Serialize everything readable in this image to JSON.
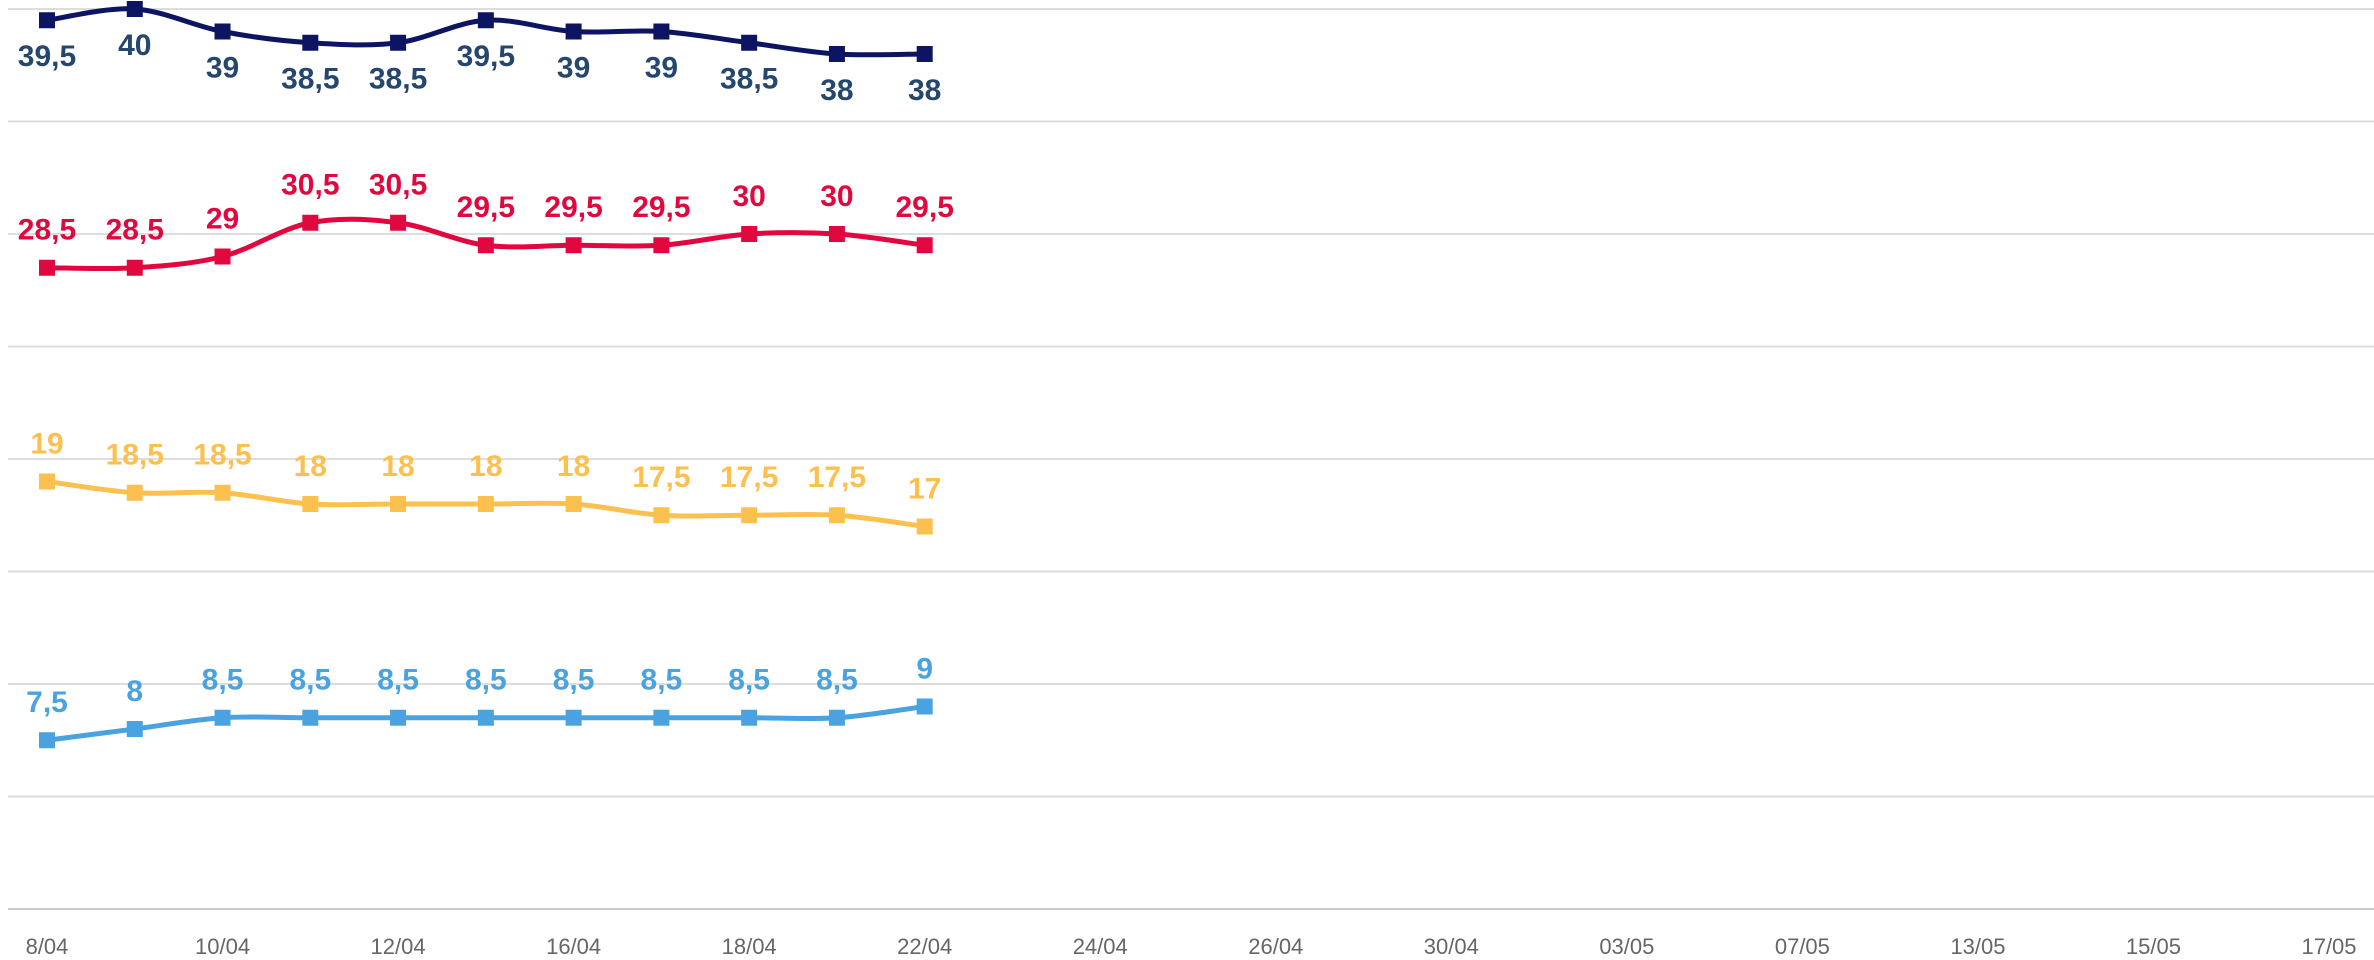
{
  "chart_data": {
    "type": "line",
    "categories": [
      "8/04",
      null,
      "10/04",
      null,
      "12/04",
      null,
      "16/04",
      null,
      "18/04",
      null,
      "22/04",
      null,
      "24/04",
      null,
      "26/04",
      null,
      "30/04",
      null,
      "03/05",
      null,
      "07/05",
      null,
      "13/05",
      null,
      "15/05",
      null,
      "17/05"
    ],
    "series": [
      {
        "color": "#0d1461",
        "label_color": "#26476d",
        "labels": "below",
        "values": [
          39.5,
          40,
          39,
          38.5,
          38.5,
          39.5,
          39,
          39,
          38.5,
          38,
          38,
          null,
          null,
          null,
          null,
          null,
          null,
          null,
          null,
          null,
          null,
          null,
          null,
          null,
          null,
          null,
          null
        ],
        "value_labels": [
          "39,5",
          "40",
          "39",
          "38,5",
          "38,5",
          "39,5",
          "39",
          "39",
          "38,5",
          "38",
          "38",
          null,
          null,
          null,
          null,
          null,
          null,
          null,
          null,
          null,
          null,
          null,
          null,
          null,
          null,
          null,
          null
        ]
      },
      {
        "color": "#e0083f",
        "label_color": "#e0083f",
        "labels": "above",
        "values": [
          28.5,
          28.5,
          29,
          30.5,
          30.5,
          29.5,
          29.5,
          29.5,
          30,
          30,
          29.5,
          null,
          null,
          null,
          null,
          null,
          null,
          null,
          null,
          null,
          null,
          null,
          null,
          null,
          null,
          null,
          null
        ],
        "value_labels": [
          "28,5",
          "28,5",
          "29",
          "30,5",
          "30,5",
          "29,5",
          "29,5",
          "29,5",
          "30",
          "30",
          "29,5",
          null,
          null,
          null,
          null,
          null,
          null,
          null,
          null,
          null,
          null,
          null,
          null,
          null,
          null,
          null,
          null
        ]
      },
      {
        "color": "#fcc04f",
        "label_color": "#fcc04f",
        "labels": "above",
        "values": [
          19,
          18.5,
          18.5,
          18,
          18,
          18,
          18,
          17.5,
          17.5,
          17.5,
          17,
          null,
          null,
          null,
          null,
          null,
          null,
          null,
          null,
          null,
          null,
          null,
          null,
          null,
          null,
          null,
          null
        ],
        "value_labels": [
          "19",
          "18,5",
          "18,5",
          "18",
          "18",
          "18",
          "18",
          "17,5",
          "17,5",
          "17,5",
          "17",
          null,
          null,
          null,
          null,
          null,
          null,
          null,
          null,
          null,
          null,
          null,
          null,
          null,
          null,
          null,
          null
        ]
      },
      {
        "color": "#4aa3e0",
        "label_color": "#4aa3e0",
        "labels": "above",
        "values": [
          7.5,
          8,
          8.5,
          8.5,
          8.5,
          8.5,
          8.5,
          8.5,
          8.5,
          8.5,
          9,
          null,
          null,
          null,
          null,
          null,
          null,
          null,
          null,
          null,
          null,
          null,
          null,
          null,
          null,
          null,
          null
        ],
        "value_labels": [
          "7,5",
          "8",
          "8,5",
          "8,5",
          "8,5",
          "8,5",
          "8,5",
          "8,5",
          "8,5",
          "8,5",
          "9",
          null,
          null,
          null,
          null,
          null,
          null,
          null,
          null,
          null,
          null,
          null,
          null,
          null,
          null,
          null,
          null
        ]
      }
    ],
    "ylim": [
      0,
      40
    ],
    "yticks": [
      0,
      5,
      10,
      15,
      20,
      25,
      30,
      35,
      40
    ],
    "grid": true
  }
}
